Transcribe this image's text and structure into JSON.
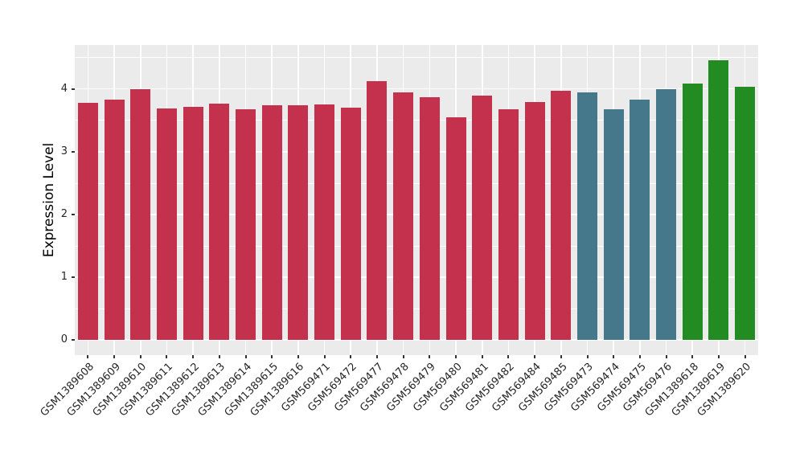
{
  "chart": {
    "background": "#FFFFFF",
    "panel_background": "#EBEBEB",
    "gridline_color": "#FFFFFF",
    "axis_text_color": "#262626",
    "tick_mark_color": "#333333"
  },
  "chart_data": {
    "type": "bar",
    "title": "",
    "xlabel": "",
    "ylabel": "Expression Level",
    "ylim": [
      -0.24,
      4.7
    ],
    "yticks": [
      0,
      1,
      2,
      3,
      4
    ],
    "yminor": [
      0.5,
      1.5,
      2.5,
      3.5,
      4.5
    ],
    "grid": "white major+minor horizontal gridlines and vertical category gridlines on grey panel",
    "legend_position": "none",
    "categories": [
      "GSM1389608",
      "GSM1389609",
      "GSM1389610",
      "GSM1389611",
      "GSM1389612",
      "GSM1389613",
      "GSM1389614",
      "GSM1389615",
      "GSM1389616",
      "GSM569471",
      "GSM569472",
      "GSM569477",
      "GSM569478",
      "GSM569479",
      "GSM569480",
      "GSM569481",
      "GSM569482",
      "GSM569484",
      "GSM569485",
      "GSM569473",
      "GSM569474",
      "GSM569475",
      "GSM569476",
      "GSM1389618",
      "GSM1389619",
      "GSM1389620"
    ],
    "values": [
      3.78,
      3.83,
      3.99,
      3.69,
      3.72,
      3.77,
      3.68,
      3.74,
      3.74,
      3.75,
      3.7,
      4.13,
      3.95,
      3.87,
      3.55,
      3.9,
      3.67,
      3.79,
      3.97,
      3.94,
      3.67,
      3.83,
      4.0,
      4.08,
      4.46,
      4.03
    ],
    "bar_colors": [
      "#C3314D",
      "#C3314D",
      "#C3314D",
      "#C3314D",
      "#C3314D",
      "#C3314D",
      "#C3314D",
      "#C3314D",
      "#C3314D",
      "#C3314D",
      "#C3314D",
      "#C3314D",
      "#C3314D",
      "#C3314D",
      "#C3314D",
      "#C3314D",
      "#C3314D",
      "#C3314D",
      "#C3314D",
      "#45788B",
      "#45788B",
      "#45788B",
      "#45788B",
      "#228B22",
      "#228B22",
      "#228B22"
    ],
    "color_groups": {
      "crimson": "#C3314D",
      "teal": "#45788B",
      "green": "#228B22"
    }
  }
}
